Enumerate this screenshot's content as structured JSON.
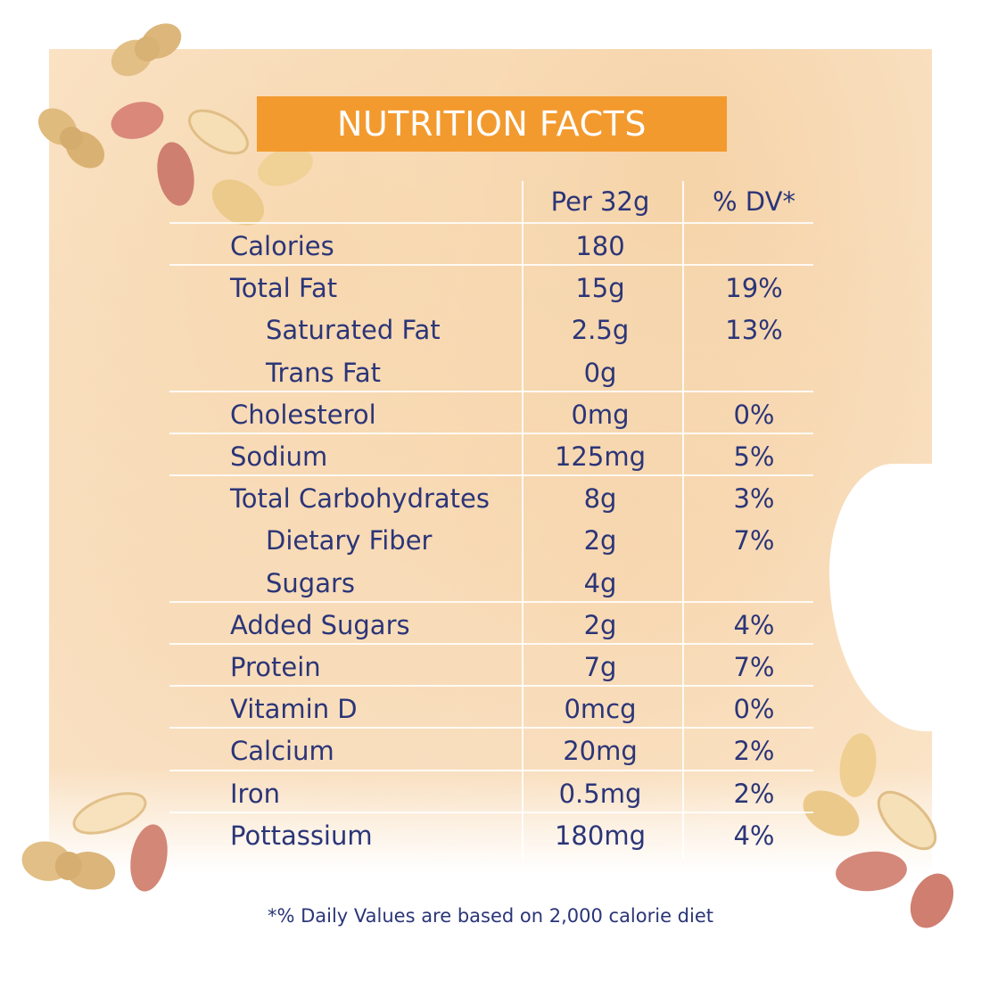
{
  "title": "NUTRITION FACTS",
  "header": {
    "amount": "Per 32g",
    "dv": "% DV*"
  },
  "rows": [
    {
      "label": "Calories",
      "amount": "180",
      "dv": "",
      "indent": false
    },
    {
      "label": "Total Fat",
      "amount": "15g",
      "dv": "19%",
      "indent": false
    },
    {
      "label": "Saturated Fat",
      "amount": "2.5g",
      "dv": "13%",
      "indent": true
    },
    {
      "label": "Trans Fat",
      "amount": "0g",
      "dv": "",
      "indent": true
    },
    {
      "label": "Cholesterol",
      "amount": "0mg",
      "dv": "0%",
      "indent": false
    },
    {
      "label": "Sodium",
      "amount": "125mg",
      "dv": "5%",
      "indent": false
    },
    {
      "label": "Total Carbohydrates",
      "amount": "8g",
      "dv": "3%",
      "indent": false
    },
    {
      "label": "Dietary Fiber",
      "amount": "2g",
      "dv": "7%",
      "indent": true
    },
    {
      "label": "Sugars",
      "amount": "4g",
      "dv": "",
      "indent": true
    },
    {
      "label": "Added Sugars",
      "amount": "2g",
      "dv": "4%",
      "indent": false
    },
    {
      "label": "Protein",
      "amount": "7g",
      "dv": "7%",
      "indent": false
    },
    {
      "label": "Vitamin D",
      "amount": "0mcg",
      "dv": "0%",
      "indent": false
    },
    {
      "label": "Calcium",
      "amount": "20mg",
      "dv": "2%",
      "indent": false
    },
    {
      "label": "Iron",
      "amount": "0.5mg",
      "dv": "2%",
      "indent": false
    },
    {
      "label": "Pottassium",
      "amount": "180mg",
      "dv": "4%",
      "indent": false
    }
  ],
  "footnote": "*% Daily Values are based on 2,000 calorie diet",
  "colors": {
    "accent": "#f39a2f",
    "text": "#2b3578",
    "background": "#fbe6cc"
  },
  "decorations": [
    "peanut-in-shell-icon",
    "peanut-kernel-icon",
    "split-peanut-icon"
  ]
}
